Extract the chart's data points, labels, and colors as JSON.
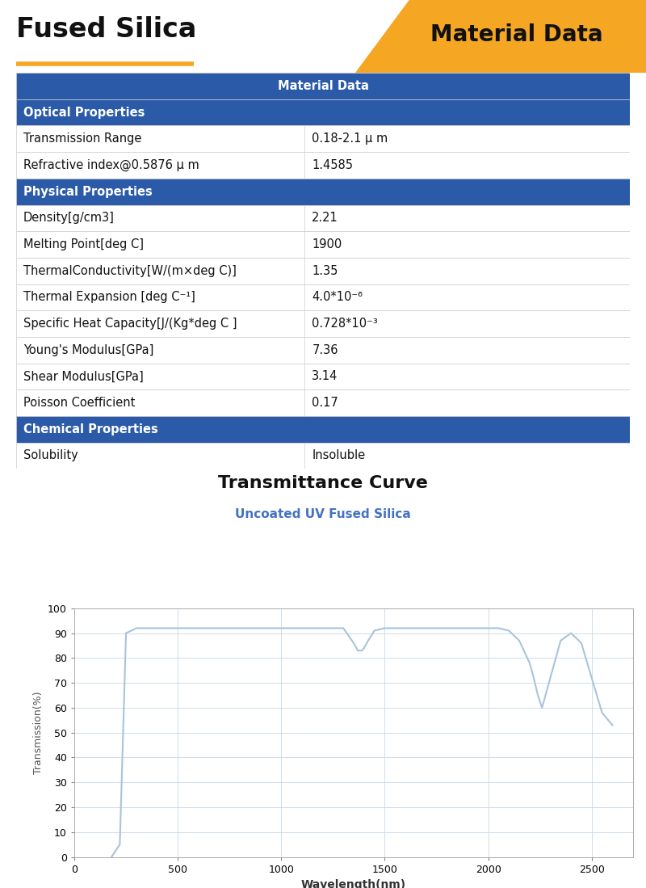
{
  "title_left": "Fused Silica",
  "title_right": "Material Data",
  "orange_color": "#F5A623",
  "header_bg": "#2B5BA8",
  "header_text_color": "#FFFFFF",
  "section_bg": "#2B5BA8",
  "section_text_color": "#FFFFFF",
  "row_bg1": "#FFFFFF",
  "row_bg2": "#F8F8F8",
  "border_color": "#CCCCCC",
  "table_header": "Material Data",
  "sections": [
    {
      "name": "Optical Properties",
      "rows": [
        [
          "Transmission Range",
          "0.18-2.1 μ m"
        ],
        [
          "Refractive index@0.5876 μ m",
          "1.4585"
        ]
      ]
    },
    {
      "name": "Physical Properties",
      "rows": [
        [
          "Density[g/cm3]",
          "2.21"
        ],
        [
          "Melting Point[deg C]",
          "1900"
        ],
        [
          "ThermalConductivity[W/(m×deg C)]",
          "1.35"
        ],
        [
          "Thermal Expansion [deg C⁻¹]",
          "4.0*10⁻⁶"
        ],
        [
          "Specific Heat Capacity[J/(Kg*deg C ]",
          "0.728*10⁻³"
        ],
        [
          "Young's Modulus[GPa]",
          "7.36"
        ],
        [
          "Shear Modulus[GPa]",
          "3.14"
        ],
        [
          "Poisson Coefficient",
          "0.17"
        ]
      ]
    },
    {
      "name": "Chemical Properties",
      "rows": [
        [
          "Solubility",
          "Insoluble"
        ]
      ]
    }
  ],
  "chart_title": "Transmittance Curve",
  "chart_subtitle": "Uncoated UV Fused Silica",
  "chart_subtitle_color": "#4472C4",
  "xlabel": "Wavelength(nm)",
  "ylabel": "Transmission(%)",
  "curve_color": "#A8C4DC",
  "grid_color": "#C8D8E8",
  "wavelength": [
    180,
    220,
    250,
    300,
    350,
    400,
    500,
    600,
    700,
    800,
    900,
    1000,
    1100,
    1200,
    1300,
    1350,
    1370,
    1390,
    1400,
    1420,
    1450,
    1500,
    1600,
    1700,
    1800,
    1900,
    2000,
    2050,
    2100,
    2150,
    2200,
    2220,
    2240,
    2260,
    2300,
    2350,
    2400,
    2450,
    2500,
    2550,
    2600
  ],
  "transmission": [
    0,
    5,
    90,
    92,
    92,
    92,
    92,
    92,
    92,
    92,
    92,
    92,
    92,
    92,
    92,
    86,
    83,
    83,
    84,
    87,
    91,
    92,
    92,
    92,
    92,
    92,
    92,
    92,
    91,
    87,
    78,
    72,
    65,
    60,
    72,
    87,
    90,
    86,
    72,
    58,
    53
  ],
  "xlim": [
    0,
    2700
  ],
  "ylim": [
    0,
    100
  ],
  "xticks": [
    0,
    500,
    1000,
    1500,
    2000,
    2500
  ],
  "yticks": [
    0,
    10,
    20,
    30,
    40,
    50,
    60,
    70,
    80,
    90,
    100
  ]
}
